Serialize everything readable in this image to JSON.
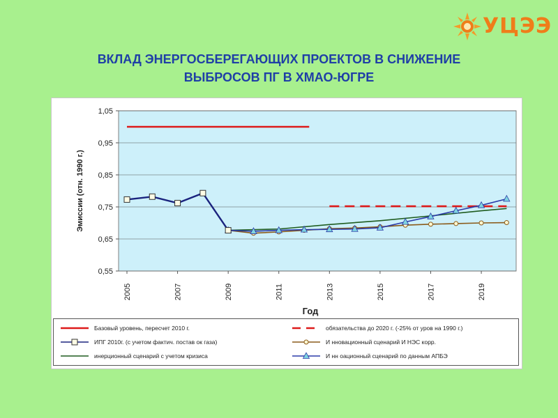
{
  "logo": {
    "text": "УЦЭЭ",
    "icon": "sun-icon",
    "color": "#ef7d1a"
  },
  "title": {
    "line1": "ВКЛАД ЭНЕРГОСБЕРЕГАЮЩИХ ПРОЕКТОВ В СНИЖЕНИЕ",
    "line2": "ВЫБРОСОВ ПГ В ХМАО-ЮГРЕ"
  },
  "chart_data": {
    "type": "line",
    "title": "",
    "xlabel": "Год",
    "ylabel": "Эмиссии (отн. 1990 г.)",
    "xlim": [
      2005,
      2020
    ],
    "ylim": [
      0.55,
      1.05
    ],
    "x_ticks": [
      "2005",
      "2007",
      "2009",
      "2011",
      "2013",
      "2015",
      "2017",
      "2019"
    ],
    "y_ticks": [
      "1,05",
      "0,95",
      "0,85",
      "0,75",
      "0,65",
      "0,55"
    ],
    "grid": true,
    "plot_background": "#cdf0fa",
    "legend_position": "bottom",
    "series": [
      {
        "name": "Базовый уровень, пересчет 2010 г.",
        "color": "#dd1a1a",
        "style": "solid",
        "marker": "none",
        "points": [
          [
            2005.0,
            1.0
          ],
          [
            2012.2,
            1.0
          ]
        ]
      },
      {
        "name": "обязательства до 2020 г. (-25% от уров на 1990 г.)",
        "color": "#dd1a1a",
        "style": "dashed",
        "marker": "none",
        "points": [
          [
            2013.0,
            0.752
          ],
          [
            2020.0,
            0.752
          ]
        ]
      },
      {
        "name": "ИПГ 2010г. (с учетом фактич. постав ок газа)",
        "color": "#1a237e",
        "style": "solid",
        "marker": "square",
        "points": [
          [
            2005,
            0.773
          ],
          [
            2006,
            0.782
          ],
          [
            2007,
            0.762
          ],
          [
            2008,
            0.793
          ],
          [
            2009,
            0.677
          ]
        ]
      },
      {
        "name": "И нновационный сценарий И НЭС корр.",
        "color": "#8a5a1a",
        "style": "solid",
        "marker": "circle",
        "points": [
          [
            2009,
            0.677
          ],
          [
            2010,
            0.668
          ],
          [
            2011,
            0.672
          ],
          [
            2012,
            0.677
          ],
          [
            2013,
            0.682
          ],
          [
            2014,
            0.684
          ],
          [
            2015,
            0.688
          ],
          [
            2016,
            0.693
          ],
          [
            2017,
            0.696
          ],
          [
            2018,
            0.698
          ],
          [
            2019,
            0.7
          ],
          [
            2020,
            0.701
          ]
        ]
      },
      {
        "name": "инерционный сценарий с учетом кризиса",
        "color": "#1f5c1f",
        "style": "solid",
        "marker": "none",
        "points": [
          [
            2009,
            0.677
          ],
          [
            2011,
            0.681
          ],
          [
            2013,
            0.695
          ],
          [
            2015,
            0.707
          ],
          [
            2017,
            0.722
          ],
          [
            2019,
            0.738
          ],
          [
            2020,
            0.745
          ]
        ]
      },
      {
        "name": "И нн оационный сценарий по данным АПБЭ",
        "color": "#2a3aa8",
        "style": "solid",
        "marker": "triangle",
        "points": [
          [
            2009,
            0.677
          ],
          [
            2010,
            0.674
          ],
          [
            2011,
            0.677
          ],
          [
            2012,
            0.679
          ],
          [
            2013,
            0.68
          ],
          [
            2014,
            0.681
          ],
          [
            2015,
            0.685
          ],
          [
            2016,
            0.703
          ],
          [
            2017,
            0.72
          ],
          [
            2018,
            0.738
          ],
          [
            2019,
            0.755
          ],
          [
            2020,
            0.775
          ]
        ]
      }
    ]
  }
}
